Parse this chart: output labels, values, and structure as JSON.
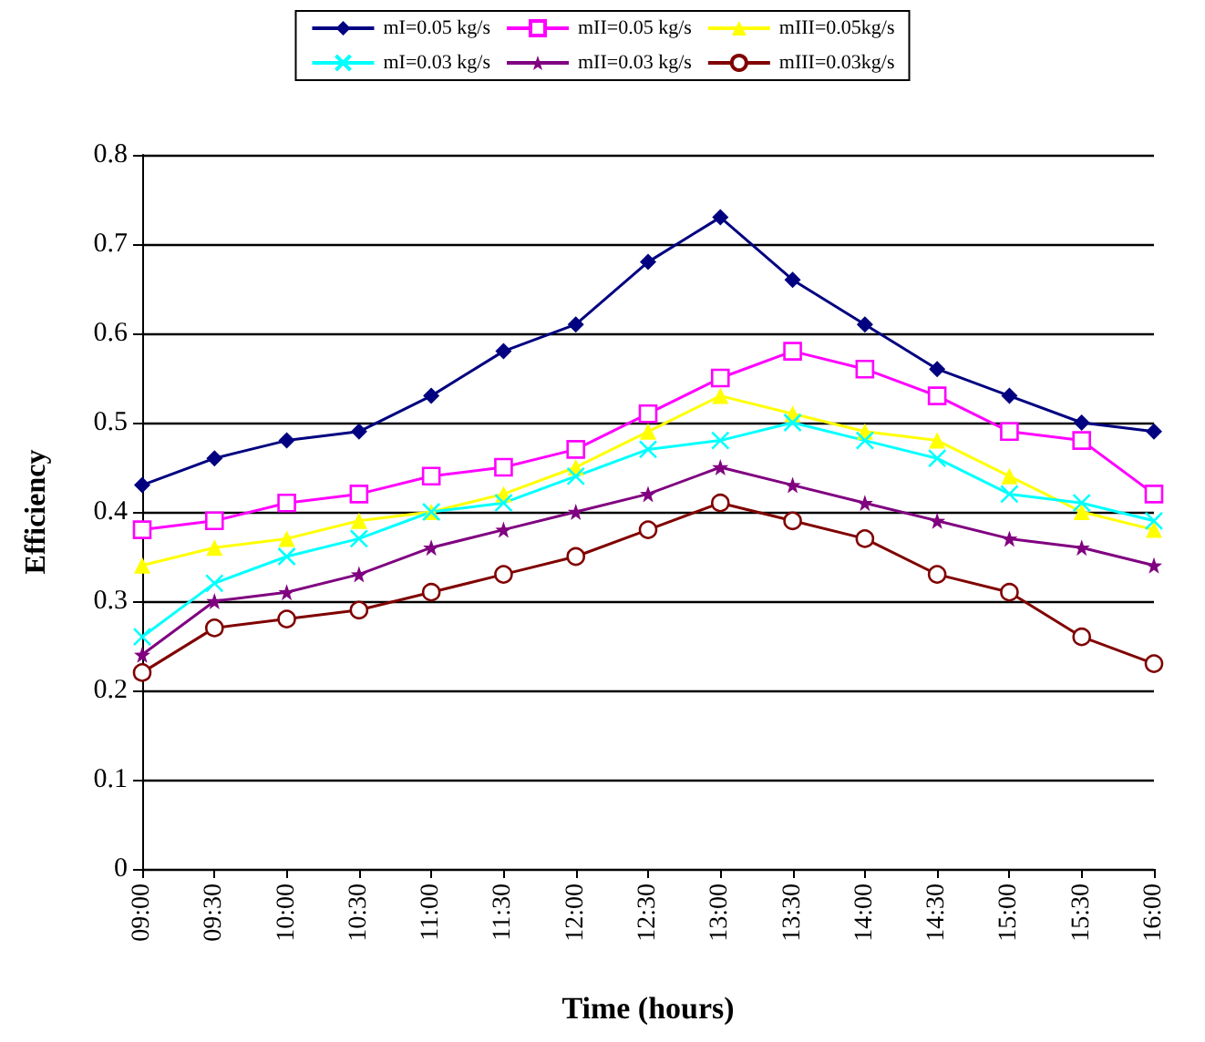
{
  "chart_data": {
    "type": "line",
    "xlabel": "Time (hours)",
    "ylabel": "Efficiency",
    "categories": [
      "09:00",
      "09:30",
      "10:00",
      "10:30",
      "11:00",
      "11:30",
      "12:00",
      "12:30",
      "13:00",
      "13:30",
      "14:00",
      "14:30",
      "15:00",
      "15:30",
      "16:00"
    ],
    "series": [
      {
        "name": "mI=0.05 kg/s",
        "color": "#000080",
        "marker": "diamond",
        "values": [
          0.43,
          0.46,
          0.48,
          0.49,
          0.53,
          0.58,
          0.61,
          0.68,
          0.73,
          0.66,
          0.61,
          0.56,
          0.53,
          0.5,
          0.49
        ]
      },
      {
        "name": "mII=0.05 kg/s",
        "color": "#ff00ff",
        "marker": "square",
        "values": [
          0.38,
          0.39,
          0.41,
          0.42,
          0.44,
          0.45,
          0.47,
          0.51,
          0.55,
          0.58,
          0.56,
          0.53,
          0.49,
          0.48,
          0.42
        ]
      },
      {
        "name": "mIII=0.05kg/s",
        "color": "#ffff00",
        "marker": "triangle",
        "values": [
          0.34,
          0.36,
          0.37,
          0.39,
          0.4,
          0.42,
          0.45,
          0.49,
          0.53,
          0.51,
          0.49,
          0.48,
          0.44,
          0.4,
          0.38
        ]
      },
      {
        "name": "mI=0.03 kg/s",
        "color": "#00ffff",
        "marker": "cross",
        "values": [
          0.26,
          0.32,
          0.35,
          0.37,
          0.4,
          0.41,
          0.44,
          0.47,
          0.48,
          0.5,
          0.48,
          0.46,
          0.42,
          0.41,
          0.39
        ]
      },
      {
        "name": "mII=0.03 kg/s",
        "color": "#800080",
        "marker": "star",
        "values": [
          0.24,
          0.3,
          0.31,
          0.33,
          0.36,
          0.38,
          0.4,
          0.42,
          0.45,
          0.43,
          0.41,
          0.39,
          0.37,
          0.36,
          0.34
        ]
      },
      {
        "name": "mIII=0.03kg/s",
        "color": "#800000",
        "marker": "circle",
        "values": [
          0.22,
          0.27,
          0.28,
          0.29,
          0.31,
          0.33,
          0.35,
          0.38,
          0.41,
          0.39,
          0.37,
          0.33,
          0.31,
          0.26,
          0.23
        ]
      }
    ],
    "ylim": [
      0,
      0.8
    ],
    "yticks": [
      0,
      0.1,
      0.2,
      0.3,
      0.4,
      0.5,
      0.6,
      0.7,
      0.8
    ],
    "grid": "y",
    "legend": "top",
    "line_style": "solid"
  }
}
